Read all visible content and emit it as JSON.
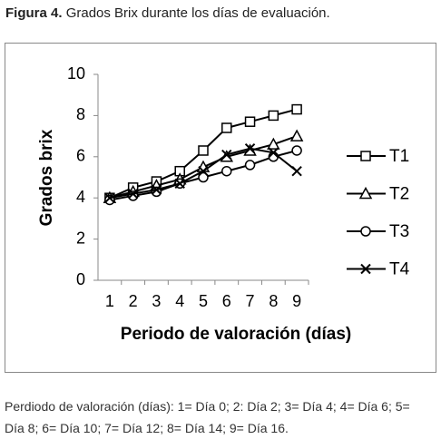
{
  "caption": {
    "label": "Figura 4.",
    "text": "Grados Brix durante los días de evaluación."
  },
  "chart_data": {
    "type": "line",
    "ylabel": "Grados brix",
    "xlabel": "Periodo de valoración (días)",
    "categories": [
      "1",
      "2",
      "3",
      "4",
      "5",
      "6",
      "7",
      "8",
      "9"
    ],
    "ylim": [
      0,
      10
    ],
    "yticks": [
      0,
      2,
      4,
      6,
      8,
      10
    ],
    "legend": "right",
    "series": [
      {
        "name": "T1",
        "color": "#000000",
        "marker": "square",
        "values": [
          4.0,
          4.5,
          4.8,
          5.3,
          6.3,
          7.4,
          7.7,
          8.0,
          8.3
        ]
      },
      {
        "name": "T2",
        "color": "#000000",
        "marker": "triangle",
        "values": [
          4.0,
          4.3,
          4.6,
          4.9,
          5.5,
          6.0,
          6.3,
          6.6,
          7.0
        ]
      },
      {
        "name": "T3",
        "color": "#000000",
        "marker": "circle",
        "values": [
          3.9,
          4.1,
          4.3,
          4.7,
          5.0,
          5.3,
          5.6,
          6.0,
          6.3
        ]
      },
      {
        "name": "T4",
        "color": "#000000",
        "marker": "x",
        "values": [
          4.0,
          4.2,
          4.4,
          4.7,
          5.3,
          6.1,
          6.4,
          6.2,
          5.3
        ]
      }
    ]
  },
  "footnote": "Perdiodo de valoración (días): 1= Día 0; 2: Día 2; 3= Día 4; 4= Día 6; 5= Día 8; 6= Día 10; 7= Día 12; 8= Día 14; 9= Día 16."
}
